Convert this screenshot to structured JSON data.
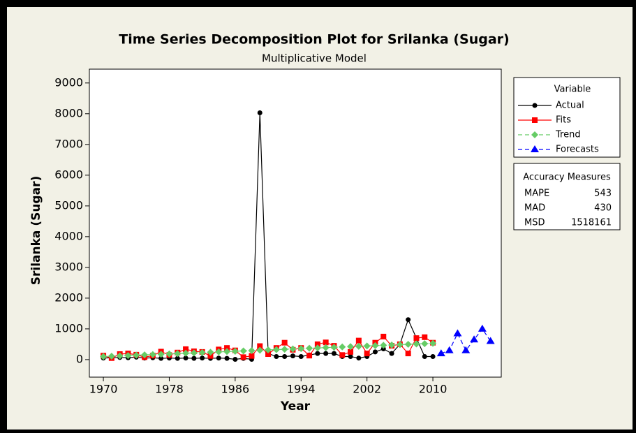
{
  "chart_data": {
    "type": "line",
    "title": "Time Series Decomposition Plot for Srilanka (Sugar)",
    "subtitle": "Multiplicative Model",
    "x_label": "Year",
    "y_label": "Srilanka (Sugar)",
    "x": [
      1970,
      1971,
      1972,
      1973,
      1974,
      1975,
      1976,
      1977,
      1978,
      1979,
      1980,
      1981,
      1982,
      1983,
      1984,
      1985,
      1986,
      1987,
      1988,
      1989,
      1990,
      1991,
      1992,
      1993,
      1994,
      1995,
      1996,
      1997,
      1998,
      1999,
      2000,
      2001,
      2002,
      2003,
      2004,
      2005,
      2006,
      2007,
      2008,
      2009,
      2010
    ],
    "series": [
      {
        "name": "Actual",
        "color": "#000000",
        "marker": "circle",
        "dashed": false,
        "values": [
          50,
          60,
          70,
          60,
          80,
          50,
          60,
          40,
          50,
          40,
          50,
          40,
          50,
          40,
          50,
          40,
          10,
          40,
          10,
          8030,
          200,
          100,
          100,
          120,
          100,
          150,
          200,
          200,
          200,
          100,
          100,
          50,
          100,
          250,
          350,
          200,
          500,
          1300,
          700,
          100,
          100
        ]
      },
      {
        "name": "Fits",
        "color": "#ff0000",
        "marker": "square",
        "dashed": false,
        "values": [
          130,
          50,
          180,
          200,
          160,
          80,
          130,
          260,
          150,
          230,
          340,
          270,
          250,
          120,
          330,
          380,
          300,
          80,
          120,
          440,
          180,
          380,
          550,
          320,
          380,
          130,
          500,
          560,
          450,
          150,
          250,
          620,
          200,
          550,
          750,
          450,
          500,
          200,
          700,
          730,
          550
        ]
      },
      {
        "name": "Trend",
        "color": "#66cc66",
        "marker": "diamond",
        "dashed": true,
        "values": [
          100,
          111,
          122,
          132,
          143,
          154,
          165,
          175,
          186,
          197,
          208,
          218,
          229,
          240,
          251,
          261,
          272,
          283,
          294,
          304,
          315,
          326,
          337,
          347,
          358,
          369,
          380,
          390,
          401,
          412,
          423,
          433,
          444,
          455,
          466,
          476,
          487,
          498,
          509,
          519,
          530
        ]
      },
      {
        "name": "Forecasts",
        "color": "#0000ff",
        "marker": "triangle",
        "dashed": true,
        "x": [
          2011,
          2012,
          2013,
          2014,
          2015,
          2016,
          2017
        ],
        "values": [
          200,
          300,
          850,
          300,
          650,
          1000,
          600
        ]
      }
    ],
    "xlim": [
      1968.3,
      2018.3
    ],
    "ylim": [
      -570,
      9450
    ],
    "xticks": [
      1970,
      1978,
      1986,
      1994,
      2002,
      2010
    ],
    "yticks": [
      0,
      1000,
      2000,
      3000,
      4000,
      5000,
      6000,
      7000,
      8000,
      9000
    ],
    "legend_title": "Variable",
    "accuracy": {
      "title": "Accuracy Measures",
      "rows": [
        [
          "MAPE",
          543
        ],
        [
          "MAD",
          430
        ],
        [
          "MSD",
          1518161
        ]
      ]
    }
  }
}
